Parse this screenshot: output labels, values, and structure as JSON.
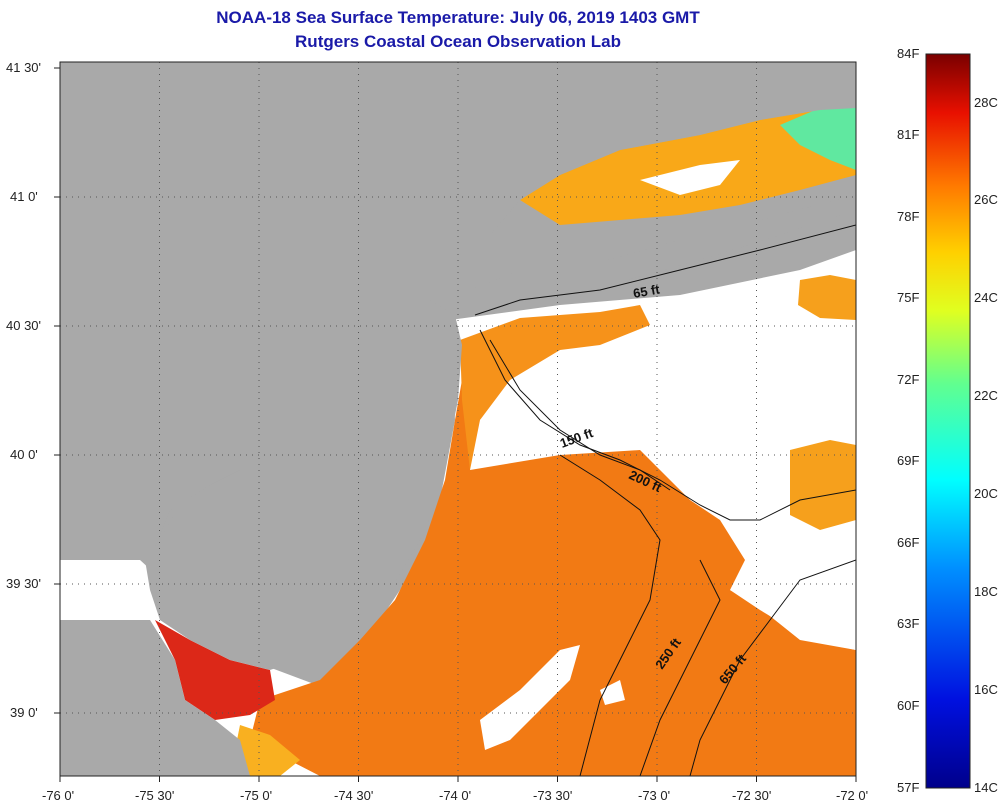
{
  "title": "NOAA-18 Sea Surface Temperature:  July 06, 2019 1403 GMT",
  "subtitle": "Rutgers Coastal Ocean Observation Lab",
  "lat_ticks": [
    "41 30'",
    "41 0'",
    "40 30'",
    "40 0'",
    "39 30'",
    "39 0'"
  ],
  "lon_ticks": [
    "-76 0'",
    "-75 30'",
    "-75 0'",
    "-74 30'",
    "-74 0'",
    "-73 30'",
    "-73 0'",
    "-72 30'",
    "-72 0'"
  ],
  "depth_labels": [
    "65 ft",
    "150 ft",
    "200 ft",
    "250 ft",
    "650 ft"
  ],
  "colorbar": {
    "fahrenheit": [
      "84F",
      "81F",
      "78F",
      "75F",
      "72F",
      "69F",
      "66F",
      "63F",
      "60F",
      "57F"
    ],
    "celsius": [
      "28C",
      "26C",
      "24C",
      "22C",
      "20C",
      "18C",
      "16C",
      "14C"
    ]
  },
  "colors": {
    "land": "#a9a9a9",
    "cloud": "#ffffff",
    "warm_water": "#f27a14",
    "hot_water": "#dc2818",
    "mild_water": "#f9a818",
    "cool_water": "#f5d020",
    "title": "#1a1aa8"
  }
}
